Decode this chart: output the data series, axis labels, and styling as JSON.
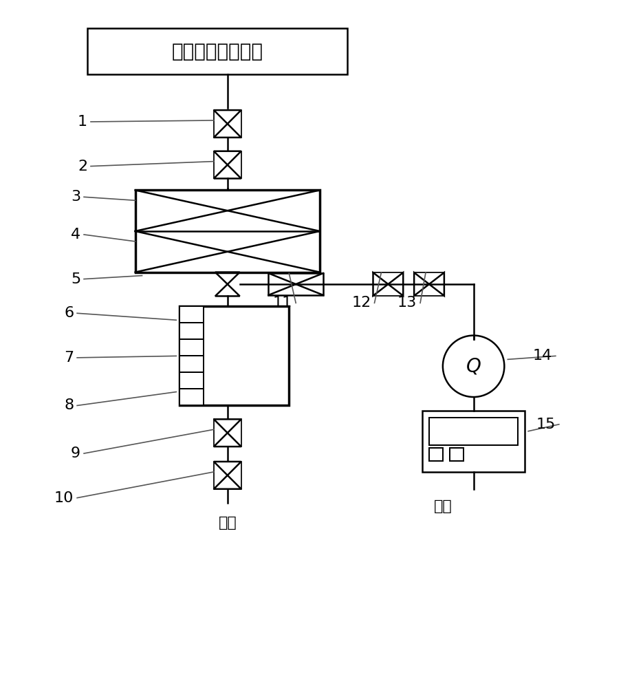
{
  "bg_color": "#ffffff",
  "line_color": "#000000",
  "title_text": "高温高压蒸汽管道",
  "discharge_text": "排放",
  "labels": [
    "1",
    "2",
    "3",
    "4",
    "5",
    "6",
    "7",
    "8",
    "9",
    "10",
    "11",
    "12",
    "13",
    "14",
    "15"
  ]
}
